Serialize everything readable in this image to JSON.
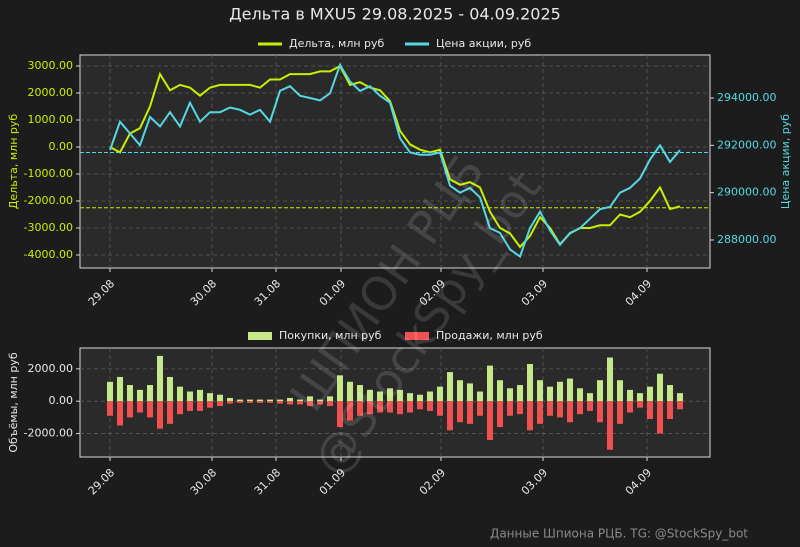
{
  "chart_data": [
    {
      "type": "line",
      "title": "Дельта в MXU5 29.08.2025 - 04.09.2025",
      "ylabel": "Дельта, млн руб",
      "y2label": "Цена акции, руб",
      "x": [
        0,
        1,
        2,
        3,
        4,
        5,
        6,
        7,
        8,
        9,
        10,
        11,
        12,
        13,
        14,
        15,
        16,
        17,
        18,
        19,
        20,
        21,
        22,
        23,
        24,
        25,
        26,
        27,
        28,
        29,
        30,
        31,
        32,
        33,
        34,
        35,
        36,
        37,
        38,
        39,
        40,
        41,
        42,
        43,
        44,
        45,
        46,
        47,
        48,
        49,
        50,
        51,
        52,
        53,
        54,
        55,
        56,
        57
      ],
      "xlim": [
        -3,
        60
      ],
      "xticks": [
        {
          "value": 0,
          "label": "29.08"
        },
        {
          "value": 10.2,
          "label": "30.08"
        },
        {
          "value": 16.6,
          "label": "31.08"
        },
        {
          "value": 23.1,
          "label": "01.09"
        },
        {
          "value": 33.1,
          "label": "02.09"
        },
        {
          "value": 43.3,
          "label": "03.09"
        },
        {
          "value": 53.7,
          "label": "04.09"
        }
      ],
      "ylim": [
        -4481,
        3407
      ],
      "yticks": [
        {
          "value": 3000,
          "label": "3000.00"
        },
        {
          "value": 2000,
          "label": "2000.00"
        },
        {
          "value": 1000,
          "label": "1000.00"
        },
        {
          "value": 0,
          "label": "0.00"
        },
        {
          "value": -1000,
          "label": "-1000.00"
        },
        {
          "value": -2000,
          "label": "-2000.00"
        },
        {
          "value": -3000,
          "label": "-3000.00"
        },
        {
          "value": -4000,
          "label": "-4000.00"
        }
      ],
      "y2lim": [
        286816,
        295818
      ],
      "y2ticks": [
        {
          "value": 288000,
          "label": "288000.00"
        },
        {
          "value": 290000,
          "label": "290000.00"
        },
        {
          "value": 292000,
          "label": "292000.00"
        },
        {
          "value": 294000,
          "label": "294000.00"
        }
      ],
      "grid": true,
      "series": [
        {
          "name": "Дельта, млн руб",
          "color": "#c6f000",
          "hline": -2250,
          "values": [
            0,
            -200,
            500,
            700,
            1500,
            2700,
            2100,
            2300,
            2200,
            1900,
            2200,
            2300,
            2300,
            2300,
            2300,
            2200,
            2500,
            2500,
            2700,
            2700,
            2700,
            2800,
            2800,
            3000,
            2300,
            2400,
            2200,
            2100,
            1700,
            600,
            100,
            -100,
            -200,
            -100,
            -1200,
            -1400,
            -1300,
            -1500,
            -2400,
            -3000,
            -3200,
            -3700,
            -3300,
            -2600,
            -3000,
            -3600,
            -3200,
            -3000,
            -3000,
            -2900,
            -2900,
            -2500,
            -2600,
            -2400,
            -2000,
            -1500,
            -2300,
            -2200
          ]
        },
        {
          "name": "Цена акции, руб",
          "color": "#56d8e4",
          "axis": "y2",
          "hline": 291700,
          "values": [
            291800,
            293000,
            292500,
            292000,
            293200,
            292800,
            293400,
            292800,
            293800,
            293000,
            293400,
            293400,
            293600,
            293500,
            293300,
            293500,
            293000,
            294300,
            294500,
            294100,
            294000,
            293900,
            294200,
            295400,
            294700,
            294300,
            294500,
            294100,
            293800,
            292300,
            291700,
            291600,
            291600,
            291700,
            290300,
            290000,
            290200,
            289800,
            288500,
            288300,
            287600,
            287300,
            288500,
            289200,
            288400,
            287800,
            288300,
            288500,
            288900,
            289300,
            289400,
            290000,
            290200,
            290600,
            291400,
            292000,
            291300,
            291800
          ]
        }
      ]
    },
    {
      "type": "bar",
      "ylabel": "Объёмы, млн руб",
      "x": [
        0,
        1,
        2,
        3,
        4,
        5,
        6,
        7,
        8,
        9,
        10,
        11,
        12,
        13,
        14,
        15,
        16,
        17,
        18,
        19,
        20,
        21,
        22,
        23,
        24,
        25,
        26,
        27,
        28,
        29,
        30,
        31,
        32,
        33,
        34,
        35,
        36,
        37,
        38,
        39,
        40,
        41,
        42,
        43,
        44,
        45,
        46,
        47,
        48,
        49,
        50,
        51,
        52,
        53,
        54,
        55,
        56,
        57
      ],
      "xlim": [
        -3,
        60
      ],
      "xticks": [
        {
          "value": 0,
          "label": "29.08"
        },
        {
          "value": 10.2,
          "label": "30.08"
        },
        {
          "value": 16.6,
          "label": "31.08"
        },
        {
          "value": 23.1,
          "label": "01.09"
        },
        {
          "value": 33.1,
          "label": "02.09"
        },
        {
          "value": 43.3,
          "label": "03.09"
        },
        {
          "value": 53.7,
          "label": "04.09"
        }
      ],
      "ylim": [
        -3450,
        3290
      ],
      "yticks": [
        {
          "value": 2000,
          "label": "2000.00"
        },
        {
          "value": 0,
          "label": "0.00"
        },
        {
          "value": -2000,
          "label": "-2000.00"
        }
      ],
      "grid": true,
      "series": [
        {
          "name": "Покупки, млн руб",
          "color": "#c4e88a",
          "values": [
            1200,
            1500,
            1000,
            700,
            1000,
            2800,
            1500,
            900,
            600,
            700,
            500,
            400,
            200,
            100,
            100,
            100,
            100,
            100,
            200,
            100,
            300,
            100,
            300,
            1600,
            1200,
            1000,
            700,
            600,
            800,
            700,
            500,
            400,
            600,
            900,
            1800,
            1300,
            1100,
            600,
            2200,
            1300,
            800,
            1000,
            2300,
            1300,
            900,
            1200,
            1400,
            800,
            500,
            1300,
            2700,
            1300,
            700,
            500,
            900,
            1700,
            1000,
            500
          ]
        },
        {
          "name": "Продажи, млн руб",
          "color": "#f05050",
          "values": [
            -900,
            -1500,
            -1000,
            -700,
            -1000,
            -1700,
            -1400,
            -800,
            -600,
            -600,
            -400,
            -300,
            -150,
            -100,
            -100,
            -100,
            -100,
            -150,
            -200,
            -200,
            -300,
            -200,
            -300,
            -1600,
            -1200,
            -900,
            -800,
            -700,
            -700,
            -800,
            -700,
            -500,
            -600,
            -900,
            -1800,
            -1300,
            -1400,
            -900,
            -2400,
            -1600,
            -900,
            -800,
            -1800,
            -1400,
            -900,
            -1000,
            -1300,
            -800,
            -600,
            -1300,
            -3000,
            -1400,
            -700,
            -400,
            -1100,
            -2000,
            -1100,
            -500
          ]
        }
      ]
    }
  ],
  "watermark": [
    "ШПИОН РЦБ",
    "@StockSpy_bot"
  ],
  "footer": "Данные Шпиона РЦБ. TG: @StockSpy_bot"
}
